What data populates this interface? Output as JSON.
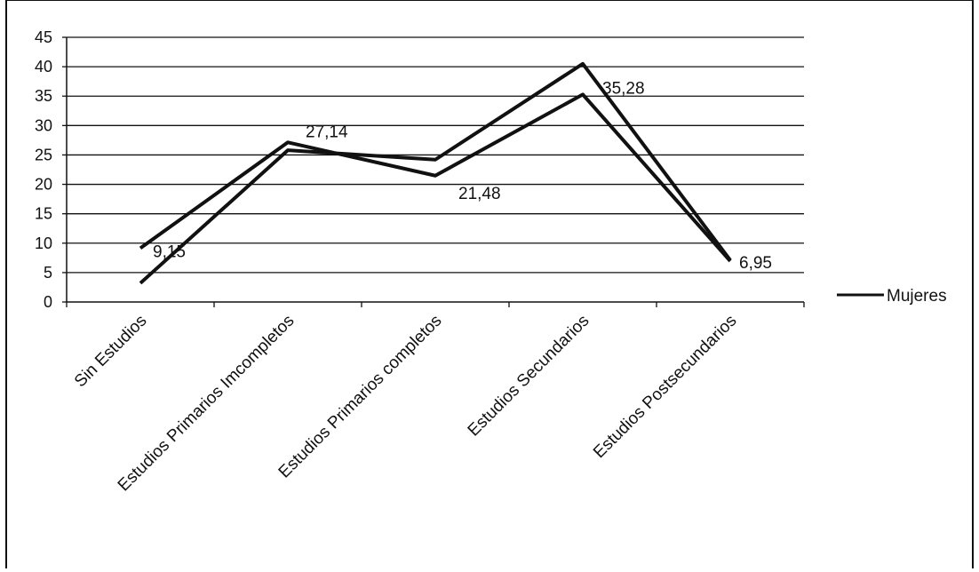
{
  "chart_data": {
    "type": "line",
    "title": "",
    "xlabel": "",
    "ylabel": "",
    "ylim": [
      0,
      45
    ],
    "yticks": [
      0,
      5,
      10,
      15,
      20,
      25,
      30,
      35,
      40,
      45
    ],
    "grid": true,
    "legend_position": "right",
    "categories": [
      "Sin Estudios",
      "Estudios Primarios Imcompletos",
      "Estudios Primarios completos",
      "Estudios Secundarios",
      "Estudios Postsecundarios"
    ],
    "series": [
      {
        "name": "Mujeres",
        "values": [
          9.15,
          27.14,
          21.48,
          35.28,
          6.95
        ],
        "color": "#111111",
        "has_labels": true
      },
      {
        "name": "",
        "values": [
          3.2,
          25.8,
          24.2,
          40.5,
          7.1
        ],
        "color": "#111111",
        "has_labels": false
      }
    ],
    "data_labels": [
      "9,15",
      "27,14",
      "21,48",
      "35,28",
      "6,95"
    ],
    "legend": {
      "label": "Mujeres"
    }
  }
}
